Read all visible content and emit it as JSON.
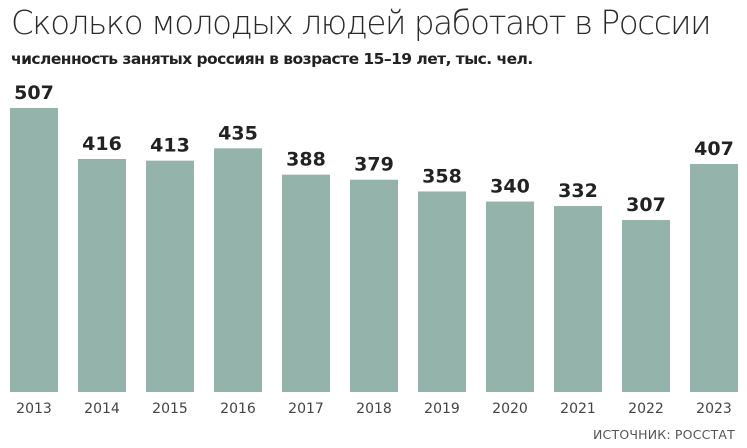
{
  "colors": {
    "bar": "#93b3ab",
    "text": "#222222",
    "axis_text": "#444444"
  },
  "source": "ИСТОЧНИК: РОССТАТ",
  "chart_data": {
    "type": "bar",
    "title": "Сколько молодых людей работают в России",
    "subtitle": "численность занятых россиян в возрасте 15–19 лет, тыс. чел.",
    "xlabel": "",
    "ylabel": "",
    "categories": [
      "2013",
      "2014",
      "2015",
      "2016",
      "2017",
      "2018",
      "2019",
      "2020",
      "2021",
      "2022",
      "2023"
    ],
    "values": [
      507,
      416,
      413,
      435,
      388,
      379,
      358,
      340,
      332,
      307,
      407
    ],
    "data_labels": [
      "507",
      "416",
      "413",
      "435",
      "388",
      "379",
      "358",
      "340",
      "332",
      "307",
      "407"
    ],
    "ylim": [
      0,
      507
    ],
    "grid": false,
    "legend": "none"
  }
}
